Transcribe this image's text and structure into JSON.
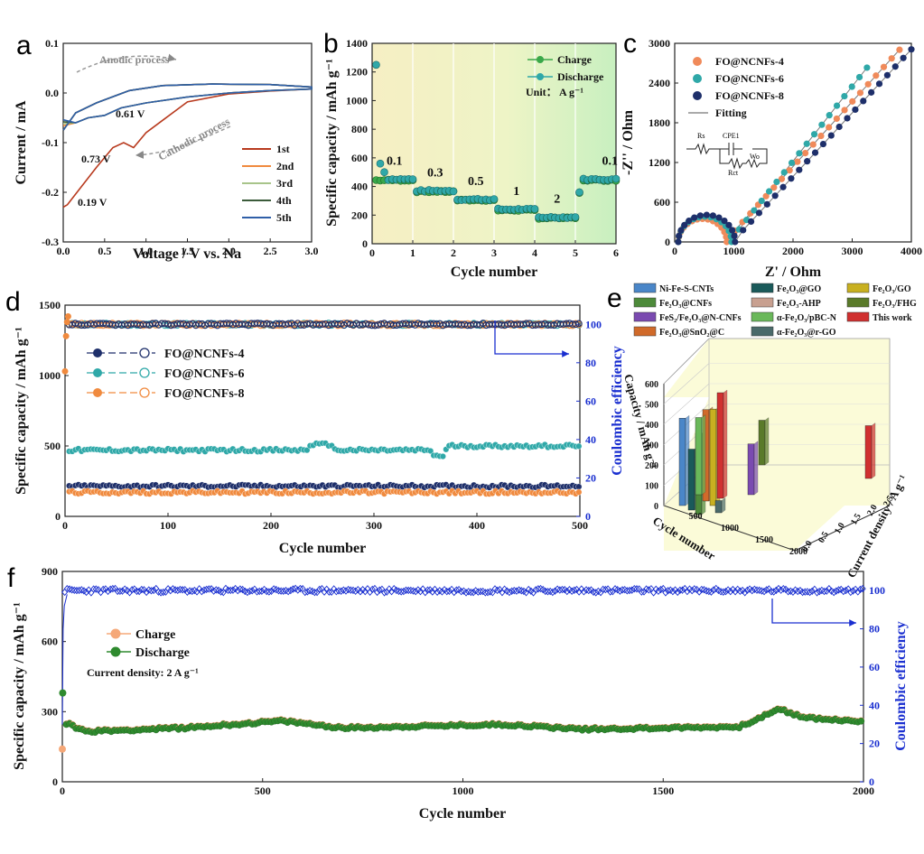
{
  "chart_data": [
    {
      "panel": "a",
      "type": "line",
      "xlabel": "Voltage / V vs. Na",
      "ylabel": "Current / mA",
      "xlim": [
        0.0,
        3.0
      ],
      "ylim": [
        -0.3,
        0.1
      ],
      "xticks": [
        "0.0",
        "0.5",
        "1.0",
        "1.5",
        "2.0",
        "2.5",
        "3.0"
      ],
      "yticks": [
        "0.1",
        "0.0",
        "-0.1",
        "-0.2",
        "-0.3"
      ],
      "annotations": [
        "0.19 V",
        "0.73 V",
        "0.61 V",
        "Anodic process",
        "Cathodic process"
      ],
      "series": [
        {
          "name": "1st",
          "color": "#b83a1e"
        },
        {
          "name": "2nd",
          "color": "#f08a3e"
        },
        {
          "name": "3rd",
          "color": "#a8c48a"
        },
        {
          "name": "4th",
          "color": "#3b5b3a"
        },
        {
          "name": "5th",
          "color": "#2f5fa8"
        }
      ]
    },
    {
      "panel": "b",
      "type": "scatter",
      "xlabel": "Cycle number",
      "ylabel": "Specific capacity / mAh g⁻¹",
      "xlim": [
        0,
        60
      ],
      "ylim": [
        0,
        1400
      ],
      "xticks": [
        "0",
        "10",
        "20",
        "30",
        "40",
        "50",
        "60"
      ],
      "xtick_labels_shown": [
        "0",
        "1",
        "2",
        "3",
        "4",
        "5",
        "6"
      ],
      "yticks": [
        "0",
        "200",
        "400",
        "600",
        "800",
        "1000",
        "1200",
        "1400"
      ],
      "unit_text": "Unit： A g⁻¹",
      "rate_labels": [
        "0.1",
        "0.3",
        "0.5",
        "1",
        "2",
        "0.1"
      ],
      "series": [
        {
          "name": "Charge",
          "color": "#3aa84a"
        },
        {
          "name": "Discharge",
          "color": "#2fa8a8"
        }
      ],
      "steps": [
        {
          "rate": "0.1",
          "from": 1,
          "to": 10,
          "capacity": 450
        },
        {
          "rate": "0.3",
          "from": 11,
          "to": 20,
          "capacity": 370
        },
        {
          "rate": "0.5",
          "from": 21,
          "to": 30,
          "capacity": 310
        },
        {
          "rate": "1",
          "from": 31,
          "to": 40,
          "capacity": 240
        },
        {
          "rate": "2",
          "from": 41,
          "to": 50,
          "capacity": 185
        },
        {
          "rate": "0.1",
          "from": 51,
          "to": 60,
          "capacity": 450
        }
      ],
      "first_discharge": 1250
    },
    {
      "panel": "c",
      "type": "scatter",
      "xlabel": "Z' / Ohm",
      "ylabel": "-Z'' / Ohm",
      "xlim": [
        0,
        4000
      ],
      "ylim": [
        0,
        3000
      ],
      "xticks": [
        "0",
        "1000",
        "2000",
        "3000",
        "4000"
      ],
      "yticks": [
        "0",
        "600",
        "1200",
        "1800",
        "2400",
        "3000"
      ],
      "circuit_labels": [
        "Rs",
        "CPE1",
        "Rct",
        "Wo"
      ],
      "series": [
        {
          "name": "FO@NCNFs-4",
          "color": "#f08a5a"
        },
        {
          "name": "FO@NCNFs-6",
          "color": "#2fa8a8"
        },
        {
          "name": "FO@NCNFs-8",
          "color": "#1e2f6a"
        },
        {
          "name": "Fitting",
          "color": "#777777"
        }
      ]
    },
    {
      "panel": "d",
      "type": "scatter",
      "xlabel": "Cycle number",
      "ylabel": "Specific capacity / mAh g⁻¹",
      "y2label": "Coulombic efficiency",
      "xlim": [
        0,
        500
      ],
      "ylim": [
        0,
        1500
      ],
      "y2lim": [
        0,
        110
      ],
      "xticks": [
        "0",
        "100",
        "200",
        "300",
        "400",
        "500"
      ],
      "yticks": [
        "0",
        "500",
        "1000",
        "1500"
      ],
      "y2ticks": [
        "0",
        "20",
        "40",
        "60",
        "80",
        "100"
      ],
      "series": [
        {
          "name": "FO@NCNFs-4",
          "color": "#1e2f6a",
          "capacity_level": 215
        },
        {
          "name": "FO@NCNFs-6",
          "color": "#2fa8a8",
          "capacity_level": 470
        },
        {
          "name": "FO@NCNFs-8",
          "color": "#f08a3e",
          "capacity_level": 170
        }
      ],
      "coulombic_efficiency": 100
    },
    {
      "panel": "e",
      "type": "bar",
      "zlabel": "Capacity / mAh g⁻¹",
      "xlabel": "Cycle number",
      "ylabel": "Current density / A g⁻¹",
      "zticks": [
        "0",
        "100",
        "200",
        "300",
        "400",
        "500",
        "600"
      ],
      "xticks": [
        "500",
        "1000",
        "1500",
        "2000"
      ],
      "yticks": [
        "0.0",
        "0.5",
        "1.0",
        "1.5",
        "2.0",
        "2.5"
      ],
      "legend": [
        {
          "name": "Ni-Fe-S-CNTs",
          "color": "#4a86c8"
        },
        {
          "name": "Fe₂O₃@CNFs",
          "color": "#4d8a3a"
        },
        {
          "name": "FeS₂/Fe₂O₃@N-CNFs",
          "color": "#7a4ab0"
        },
        {
          "name": "Fe₂O₃@SnO₂@C",
          "color": "#d06a2a"
        },
        {
          "name": "Fe₂O₃@GO",
          "color": "#1a5a5a"
        },
        {
          "name": "Fe₂O₃-AHP",
          "color": "#c8a090"
        },
        {
          "name": "α-Fe₂O₃/pBC-N",
          "color": "#6ab85a"
        },
        {
          "name": "α-Fe₂O₃@r-GO",
          "color": "#4a6a6a"
        },
        {
          "name": "Fe₂O₃/GO",
          "color": "#c8b020"
        },
        {
          "name": "Fe₂O₃/FHG",
          "color": "#5a7a2a"
        },
        {
          "name": "This work",
          "color": "#d03030"
        }
      ]
    },
    {
      "panel": "f",
      "type": "scatter",
      "xlabel": "Cycle number",
      "ylabel": "Specific capacity / mAh g⁻¹",
      "y2label": "Coulombic efficiency",
      "xlim": [
        0,
        2000
      ],
      "ylim": [
        0,
        900
      ],
      "y2lim": [
        0,
        110
      ],
      "xticks": [
        "0",
        "500",
        "1000",
        "1500",
        "2000"
      ],
      "yticks": [
        "0",
        "300",
        "600",
        "900"
      ],
      "y2ticks": [
        "0",
        "20",
        "40",
        "60",
        "80",
        "100"
      ],
      "current_density_text": "Current density: 2 A g⁻¹",
      "series": [
        {
          "name": "Charge",
          "color": "#f5a878"
        },
        {
          "name": "Discharge",
          "color": "#2e8a2e"
        }
      ],
      "capacity_profile": [
        [
          0,
          380
        ],
        [
          10,
          250
        ],
        [
          60,
          215
        ],
        [
          300,
          230
        ],
        [
          550,
          260
        ],
        [
          700,
          230
        ],
        [
          1100,
          245
        ],
        [
          1300,
          225
        ],
        [
          1690,
          235
        ],
        [
          1790,
          310
        ],
        [
          1850,
          275
        ],
        [
          2000,
          255
        ]
      ],
      "coulombic_efficiency": 100
    }
  ]
}
